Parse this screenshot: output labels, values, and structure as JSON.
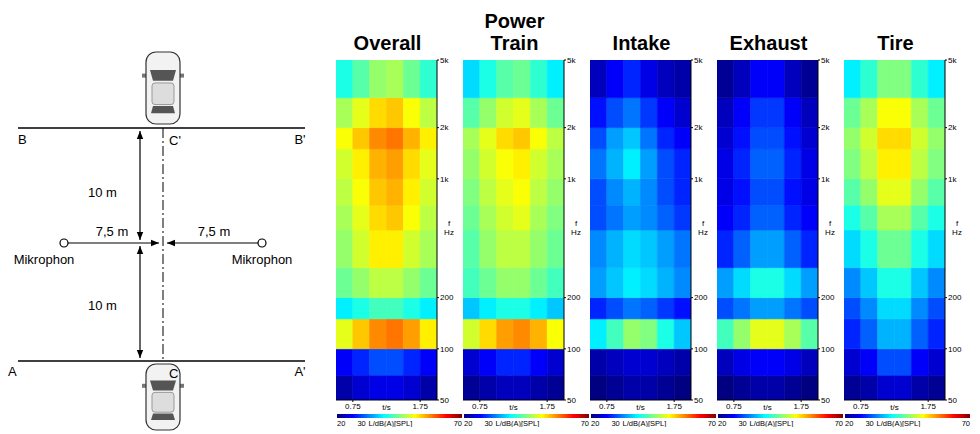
{
  "diagram": {
    "line_B": {
      "left": "B",
      "right": "B'",
      "center": "C'"
    },
    "line_A": {
      "left": "A",
      "right": "A'",
      "center": "C"
    },
    "upper_distance": "10 m",
    "lower_distance": "10 m",
    "left_microphone": {
      "label": "Mikrophon",
      "distance": "7,5 m"
    },
    "right_microphone": {
      "label": "Mikrophon",
      "distance": "7,5 m"
    }
  },
  "chart_data": [
    {
      "type": "heatmap",
      "title": "Overall",
      "xlabel": "t/s",
      "ylabel": "f Hz",
      "log": "y",
      "xlim": [
        0.5,
        2.0
      ],
      "xticks": [
        0.75,
        1.75
      ],
      "ylim": [
        50,
        5000
      ],
      "yticks": [
        50,
        100,
        200,
        {
          "value": 1000,
          "label": "1k"
        },
        {
          "value": 2000,
          "label": "2k"
        },
        {
          "value": 5000,
          "label": "5k"
        }
      ],
      "time_bins": [
        0.5,
        0.75,
        1.0,
        1.25,
        1.5,
        1.75,
        2.0
      ],
      "freq_bins": [
        50,
        70,
        100,
        150,
        200,
        300,
        500,
        700,
        1000,
        1500,
        2000,
        3000,
        5000
      ],
      "cells": [
        [
          22,
          24,
          25,
          25,
          24,
          22
        ],
        [
          26,
          28,
          30,
          30,
          28,
          26
        ],
        [
          50,
          54,
          57,
          58,
          56,
          52
        ],
        [
          38,
          40,
          42,
          42,
          40,
          38
        ],
        [
          44,
          46,
          48,
          48,
          46,
          44
        ],
        [
          46,
          49,
          52,
          52,
          49,
          47
        ],
        [
          47,
          50,
          53,
          54,
          51,
          48
        ],
        [
          48,
          51,
          54,
          55,
          52,
          49
        ],
        [
          49,
          52,
          55,
          56,
          53,
          50
        ],
        [
          51,
          54,
          57,
          58,
          55,
          52
        ],
        [
          47,
          50,
          53,
          54,
          51,
          48
        ],
        [
          40,
          43,
          46,
          47,
          44,
          41
        ]
      ],
      "colorbar": {
        "range": [
          20,
          70
        ],
        "ticks": [
          20,
          30,
          70
        ],
        "label": "L/dB(A)[SPL]"
      }
    },
    {
      "type": "heatmap",
      "title": "Power Train",
      "xlabel": "t/s",
      "ylabel": "f Hz",
      "log": "y",
      "xlim": [
        0.5,
        2.0
      ],
      "xticks": [
        0.75,
        1.75
      ],
      "ylim": [
        50,
        5000
      ],
      "yticks": [
        50,
        100,
        200,
        {
          "value": 1000,
          "label": "1k"
        },
        {
          "value": 2000,
          "label": "2k"
        },
        {
          "value": 5000,
          "label": "5k"
        }
      ],
      "time_bins": [
        0.5,
        0.75,
        1.0,
        1.25,
        1.5,
        1.75,
        2.0
      ],
      "freq_bins": [
        50,
        70,
        100,
        150,
        200,
        300,
        500,
        700,
        1000,
        1500,
        2000,
        3000,
        5000
      ],
      "cells": [
        [
          21,
          22,
          23,
          23,
          22,
          21
        ],
        [
          24,
          26,
          28,
          28,
          26,
          24
        ],
        [
          49,
          53,
          56,
          57,
          55,
          51
        ],
        [
          36,
          38,
          40,
          40,
          38,
          36
        ],
        [
          42,
          44,
          46,
          46,
          44,
          42
        ],
        [
          43,
          46,
          48,
          48,
          46,
          44
        ],
        [
          44,
          47,
          49,
          50,
          47,
          45
        ],
        [
          45,
          48,
          50,
          51,
          48,
          46
        ],
        [
          46,
          49,
          51,
          52,
          49,
          47
        ],
        [
          47,
          50,
          53,
          54,
          51,
          48
        ],
        [
          43,
          46,
          49,
          50,
          47,
          44
        ],
        [
          37,
          40,
          43,
          44,
          41,
          38
        ]
      ],
      "colorbar": {
        "range": [
          20,
          70
        ],
        "ticks": [
          20,
          30,
          70
        ],
        "label": "L/dB(A)[SPL]"
      }
    },
    {
      "type": "heatmap",
      "title": "Intake",
      "xlabel": "t/s",
      "ylabel": "f Hz",
      "log": "y",
      "xlim": [
        0.5,
        2.0
      ],
      "xticks": [
        0.75,
        1.75
      ],
      "ylim": [
        50,
        5000
      ],
      "yticks": [
        50,
        100,
        200,
        {
          "value": 1000,
          "label": "1k"
        },
        {
          "value": 2000,
          "label": "2k"
        },
        {
          "value": 5000,
          "label": "5k"
        }
      ],
      "time_bins": [
        0.5,
        0.75,
        1.0,
        1.25,
        1.5,
        1.75,
        2.0
      ],
      "freq_bins": [
        50,
        70,
        100,
        150,
        200,
        300,
        500,
        700,
        1000,
        1500,
        2000,
        3000,
        5000
      ],
      "cells": [
        [
          20,
          21,
          22,
          22,
          21,
          20
        ],
        [
          22,
          23,
          24,
          24,
          23,
          22
        ],
        [
          38,
          42,
          46,
          45,
          40,
          36
        ],
        [
          28,
          30,
          32,
          31,
          29,
          27
        ],
        [
          34,
          36,
          38,
          37,
          35,
          33
        ],
        [
          33,
          35,
          37,
          36,
          34,
          32
        ],
        [
          30,
          32,
          34,
          33,
          31,
          29
        ],
        [
          30,
          33,
          35,
          33,
          30,
          28
        ],
        [
          32,
          35,
          38,
          34,
          30,
          28
        ],
        [
          30,
          34,
          36,
          32,
          28,
          26
        ],
        [
          27,
          30,
          32,
          29,
          26,
          24
        ],
        [
          23,
          26,
          28,
          25,
          23,
          22
        ]
      ],
      "colorbar": {
        "range": [
          20,
          70
        ],
        "ticks": [
          20,
          30,
          70
        ],
        "label": "L/dB(A)[SPL]"
      }
    },
    {
      "type": "heatmap",
      "title": "Exhaust",
      "xlabel": "t/s",
      "ylabel": "f Hz",
      "log": "y",
      "xlim": [
        0.5,
        2.0
      ],
      "xticks": [
        0.75,
        1.75
      ],
      "ylim": [
        50,
        5000
      ],
      "yticks": [
        50,
        100,
        200,
        {
          "value": 1000,
          "label": "1k"
        },
        {
          "value": 2000,
          "label": "2k"
        },
        {
          "value": 5000,
          "label": "5k"
        }
      ],
      "time_bins": [
        0.5,
        0.75,
        1.0,
        1.25,
        1.5,
        1.75,
        2.0
      ],
      "freq_bins": [
        50,
        70,
        100,
        150,
        200,
        300,
        500,
        700,
        1000,
        1500,
        2000,
        3000,
        5000
      ],
      "cells": [
        [
          20,
          21,
          22,
          22,
          21,
          20
        ],
        [
          23,
          25,
          26,
          26,
          25,
          23
        ],
        [
          42,
          46,
          50,
          50,
          47,
          43
        ],
        [
          30,
          32,
          34,
          34,
          32,
          30
        ],
        [
          34,
          37,
          40,
          40,
          37,
          34
        ],
        [
          28,
          31,
          34,
          34,
          31,
          28
        ],
        [
          26,
          28,
          31,
          31,
          28,
          26
        ],
        [
          25,
          27,
          30,
          30,
          27,
          25
        ],
        [
          25,
          28,
          31,
          31,
          28,
          25
        ],
        [
          24,
          27,
          30,
          30,
          27,
          24
        ],
        [
          23,
          26,
          29,
          29,
          26,
          23
        ],
        [
          21,
          23,
          26,
          26,
          23,
          21
        ]
      ],
      "colorbar": {
        "range": [
          20,
          70
        ],
        "ticks": [
          20,
          30,
          70
        ],
        "label": "L/dB(A)[SPL]"
      }
    },
    {
      "type": "heatmap",
      "title": "Tire",
      "xlabel": "t/s",
      "ylabel": "f Hz",
      "log": "y",
      "xlim": [
        0.5,
        2.0
      ],
      "xticks": [
        0.75,
        1.75
      ],
      "ylim": [
        50,
        5000
      ],
      "yticks": [
        50,
        100,
        200,
        {
          "value": 1000,
          "label": "1k"
        },
        {
          "value": 2000,
          "label": "2k"
        },
        {
          "value": 5000,
          "label": "5k"
        }
      ],
      "time_bins": [
        0.5,
        0.75,
        1.0,
        1.25,
        1.5,
        1.75,
        2.0
      ],
      "freq_bins": [
        50,
        70,
        100,
        150,
        200,
        300,
        500,
        700,
        1000,
        1500,
        2000,
        3000,
        5000
      ],
      "cells": [
        [
          21,
          22,
          24,
          24,
          22,
          21
        ],
        [
          24,
          26,
          30,
          30,
          26,
          24
        ],
        [
          28,
          31,
          35,
          35,
          31,
          28
        ],
        [
          30,
          33,
          37,
          37,
          33,
          30
        ],
        [
          33,
          36,
          40,
          40,
          36,
          33
        ],
        [
          37,
          40,
          44,
          44,
          40,
          37
        ],
        [
          40,
          43,
          47,
          47,
          43,
          40
        ],
        [
          43,
          46,
          50,
          50,
          46,
          43
        ],
        [
          45,
          48,
          52,
          52,
          48,
          45
        ],
        [
          46,
          49,
          53,
          53,
          49,
          46
        ],
        [
          44,
          47,
          51,
          51,
          47,
          44
        ],
        [
          38,
          41,
          45,
          45,
          41,
          38
        ]
      ],
      "colorbar": {
        "range": [
          20,
          70
        ],
        "ticks": [
          20,
          30,
          70
        ],
        "label": "L/dB(A)[SPL]"
      }
    }
  ]
}
